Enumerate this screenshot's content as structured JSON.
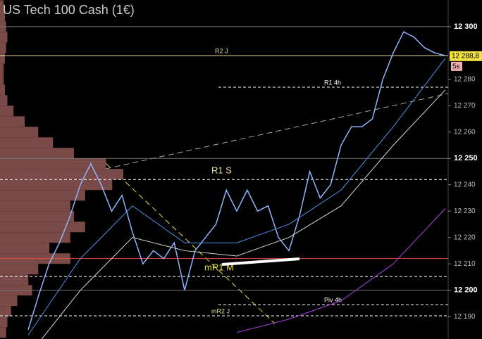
{
  "chart_data": {
    "type": "line",
    "title": "US Tech 100 Cash (1€)",
    "timeframe": "5s",
    "ylim": [
      12181.5,
      12310.1
    ],
    "yticks": [
      {
        "value": 12190,
        "label": "12 190"
      },
      {
        "value": 12200,
        "label": "12 200"
      },
      {
        "value": 12210,
        "label": "12 210"
      },
      {
        "value": 12220,
        "label": "12 220"
      },
      {
        "value": 12230,
        "label": "12 230"
      },
      {
        "value": 12240,
        "label": "12 240"
      },
      {
        "value": 12250,
        "label": "12 250"
      },
      {
        "value": 12260,
        "label": "12 260"
      },
      {
        "value": 12270,
        "label": "12 270"
      },
      {
        "value": 12280,
        "label": "12 280"
      },
      {
        "value": 12300,
        "label": "12 300"
      }
    ],
    "major_yticks": [
      12200,
      12250,
      12300
    ],
    "last_price": {
      "value": 12288.8,
      "label": "12 288,8"
    },
    "series": [
      {
        "name": "price",
        "color": "#8fb4ff",
        "values": [
          12185,
          12198,
          12210,
          12218,
          12228,
          12240,
          12248,
          12240,
          12230,
          12236,
          12222,
          12210,
          12215,
          12212,
          12218,
          12200,
          12215,
          12220,
          12225,
          12238,
          12230,
          12238,
          12230,
          12232,
          12220,
          12215,
          12228,
          12245,
          12235,
          12240,
          12255,
          12262,
          12262,
          12265,
          12280,
          12290,
          12298,
          12296,
          12292,
          12290,
          12289
        ]
      },
      {
        "name": "ma-fast",
        "color": "#4f8fe8",
        "values": [
          12183,
          12212,
          12232,
          12218,
          12218,
          12225,
          12238,
          12262,
          12288
        ]
      },
      {
        "name": "ma-slow",
        "color": "#d8d8c8",
        "values": [
          12175,
          12200,
          12220,
          12215,
          12213,
          12220,
          12232,
          12255,
          12276
        ]
      },
      {
        "name": "ma-long",
        "color": "#b040e0",
        "values": [
          null,
          null,
          null,
          null,
          12184,
          12189,
          12196,
          12210,
          12231
        ]
      }
    ],
    "levels": [
      {
        "name": "R2 J",
        "value": 12289,
        "color": "#e8e0a0",
        "style": "solid"
      },
      {
        "name": "R1 4h",
        "value": 12277,
        "color": "#ffffff",
        "style": "dashed"
      },
      {
        "name": "R1 S",
        "value": 12242,
        "color": "#ffffff",
        "style": "dashed"
      },
      {
        "name": "mR1 M",
        "value": 12205.2,
        "color": "#ffffff",
        "style": "dashed"
      },
      {
        "name": "Piv 4h",
        "value": 12194.5,
        "color": "#ffffff",
        "style": "dashed"
      },
      {
        "name": "mR2 J",
        "value": 12190.3,
        "color": "#ffffff",
        "style": "dashed"
      },
      {
        "name": null,
        "value": 12212,
        "color": "#e05040",
        "style": "solid"
      }
    ],
    "volume_profile": {
      "color": "#7a4a48",
      "prices": [
        12184,
        12188,
        12192,
        12196,
        12200,
        12204,
        12208,
        12212,
        12216,
        12220,
        12224,
        12228,
        12232,
        12236,
        12240,
        12244,
        12248,
        12252,
        12256,
        12260,
        12264,
        12268,
        12272,
        12276,
        12280,
        12284,
        12288,
        12292,
        12296,
        12300,
        12304,
        12308
      ],
      "values": [
        5,
        6,
        9,
        14,
        26,
        23,
        31,
        57,
        40,
        57,
        69,
        60,
        57,
        69,
        91,
        100,
        86,
        60,
        43,
        31,
        20,
        11,
        6,
        4,
        3,
        3,
        4,
        5,
        6,
        5,
        4,
        3
      ]
    }
  }
}
